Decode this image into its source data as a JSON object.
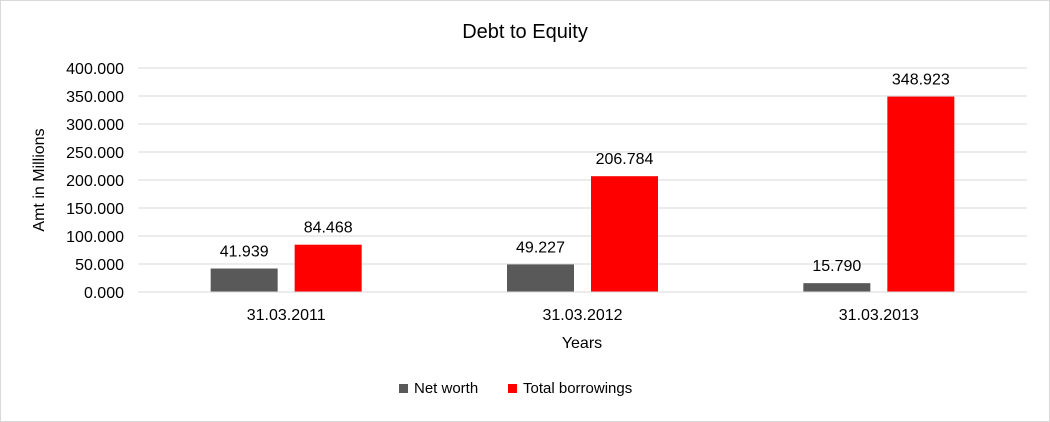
{
  "chart_data": {
    "type": "bar",
    "title": "Debt to Equity",
    "xlabel": "Years",
    "ylabel": "Amt in Millions",
    "categories": [
      "31.03.2011",
      "31.03.2012",
      "31.03.2013"
    ],
    "series": [
      {
        "name": "Net worth",
        "values": [
          41.939,
          49.227,
          15.79
        ],
        "labels": [
          "41.939",
          "49.227",
          "15.790"
        ],
        "color": "#595959"
      },
      {
        "name": "Total borrowings",
        "values": [
          84.468,
          206.784,
          348.923
        ],
        "labels": [
          "84.468",
          "206.784",
          "348.923"
        ],
        "color": "#ff0000"
      }
    ],
    "ylim": [
      0,
      400
    ],
    "yticks": [
      0,
      50,
      100,
      150,
      200,
      250,
      300,
      350,
      400
    ],
    "ytick_labels": [
      "0.000",
      "50.000",
      "100.000",
      "150.000",
      "200.000",
      "250.000",
      "300.000",
      "350.000",
      "400.000"
    ],
    "grid": true,
    "legend_position": "bottom"
  }
}
